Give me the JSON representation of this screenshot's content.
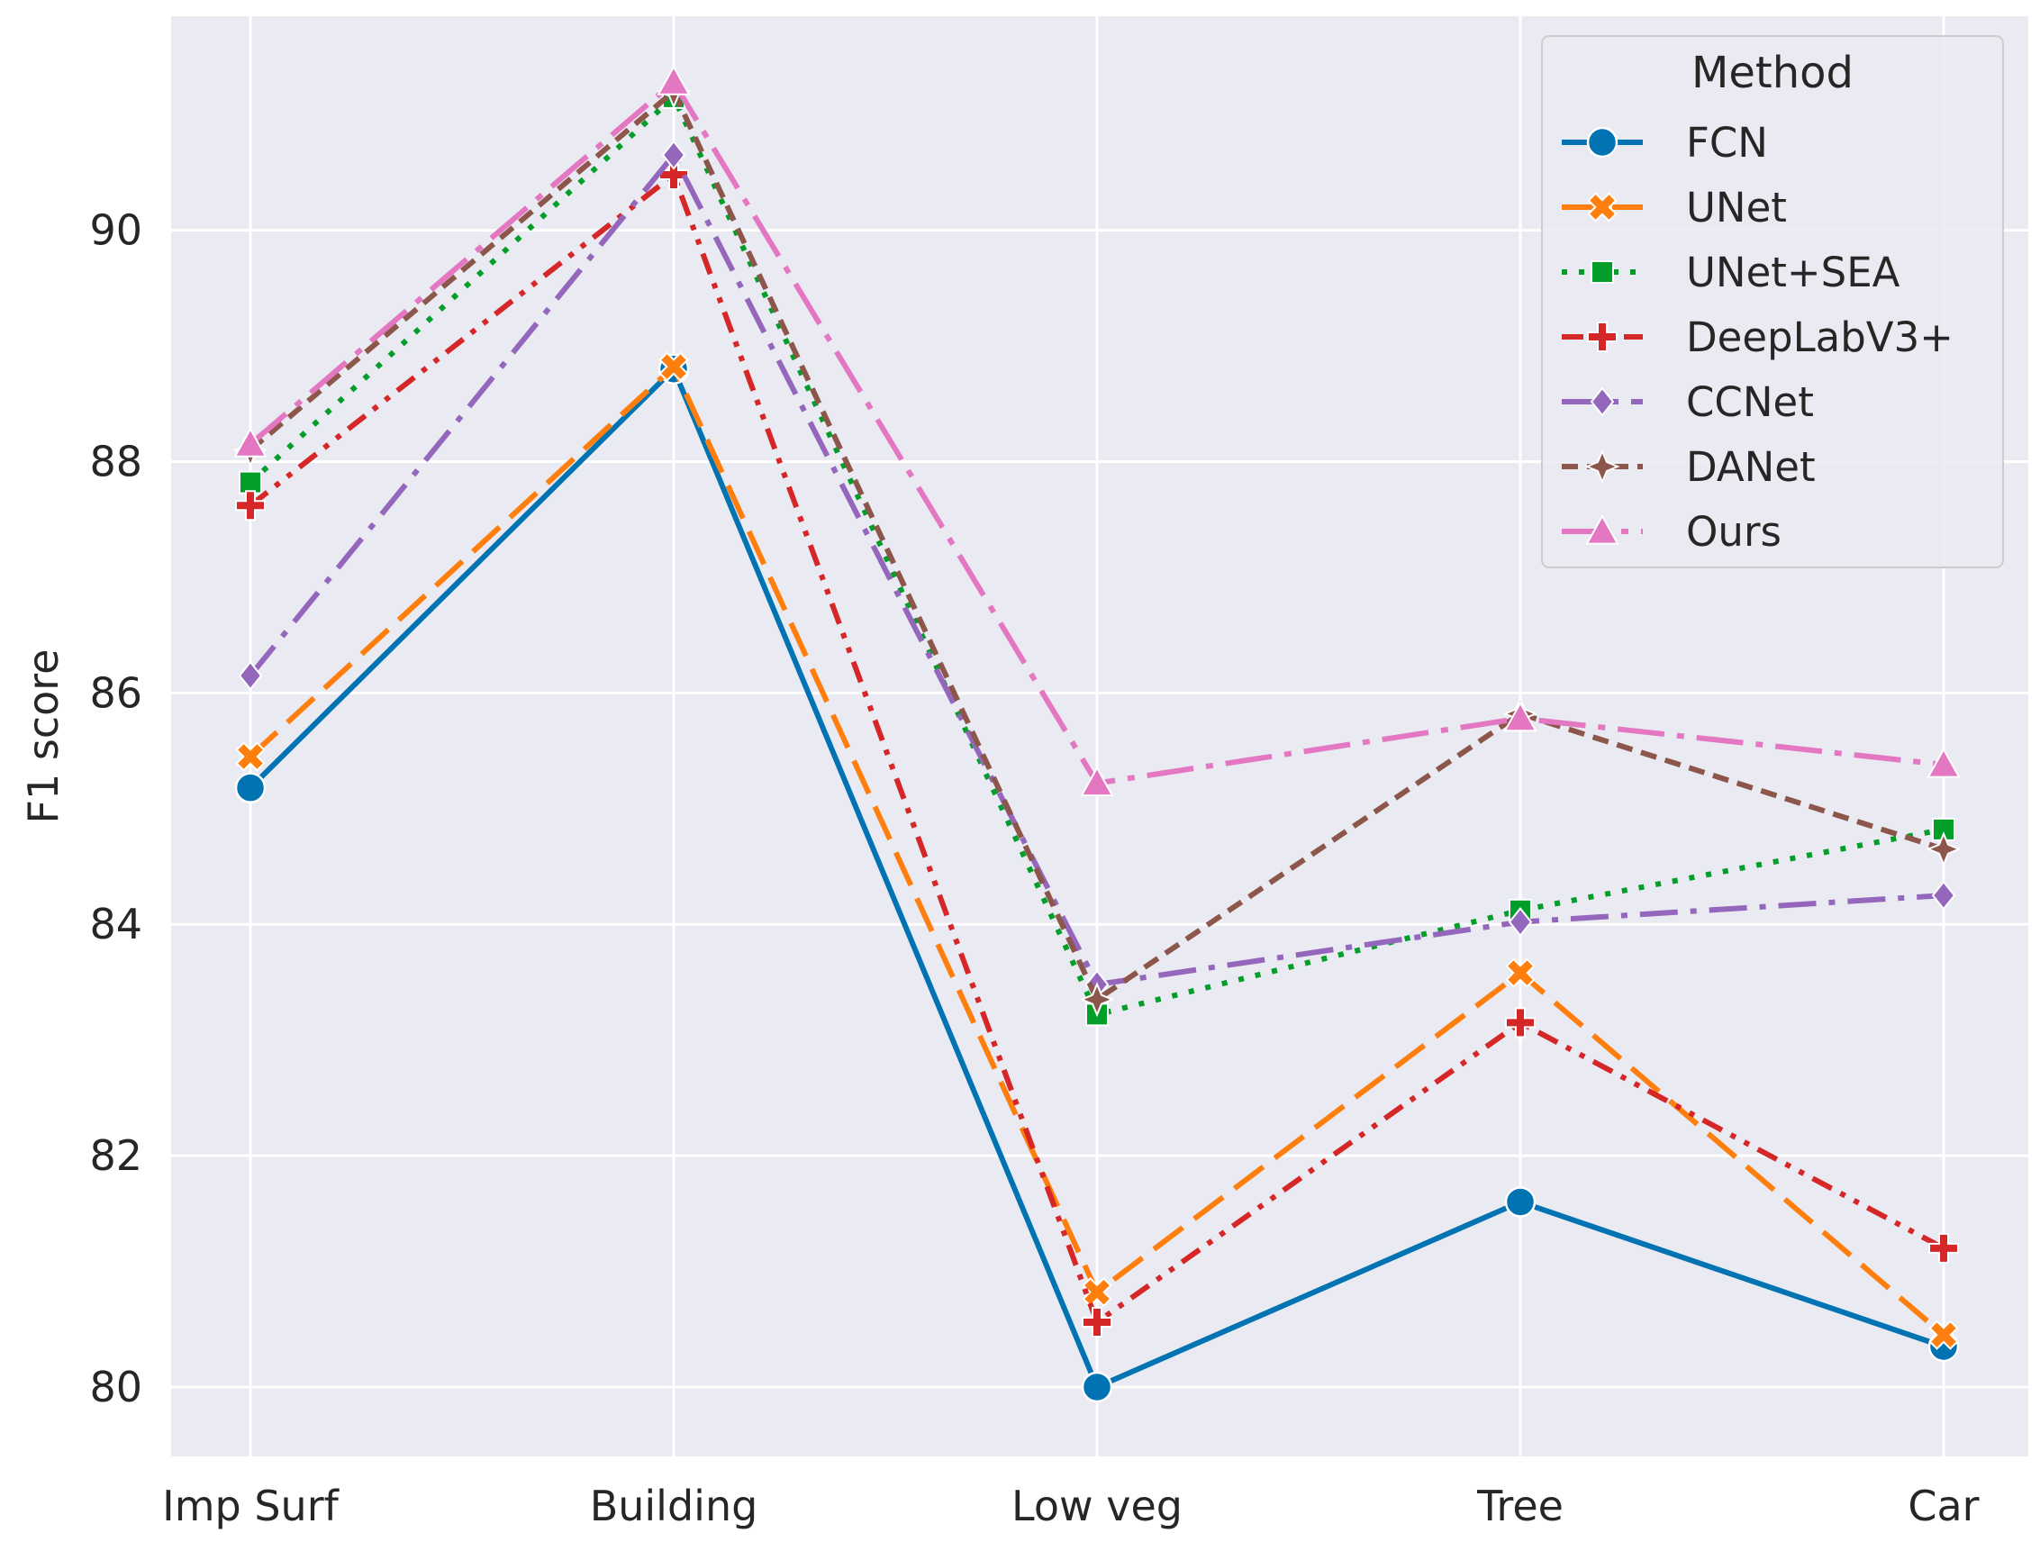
{
  "chart_data": {
    "type": "line",
    "title": "",
    "xlabel": "",
    "ylabel": "F1 score",
    "categories": [
      "Imp Surf",
      "Building",
      "Low veg",
      "Tree",
      "Car"
    ],
    "ylim": [
      79.4,
      91.85
    ],
    "yticks": [
      80,
      82,
      84,
      86,
      88,
      90
    ],
    "grid": true,
    "background": "#eaeaf2",
    "legend": {
      "title": "Method",
      "position": "top-right"
    },
    "series": [
      {
        "name": "FCN",
        "color": "#0173b2",
        "dash": "solid",
        "marker": "circle",
        "values": [
          85.18,
          88.8,
          80.0,
          81.6,
          80.35
        ]
      },
      {
        "name": "UNet",
        "color": "#ff7f0e",
        "dash": "dashed",
        "marker": "x",
        "values": [
          85.45,
          88.82,
          80.82,
          83.58,
          80.45
        ]
      },
      {
        "name": "UNet+SEA",
        "color": "#029e29",
        "dash": "dotted",
        "marker": "square",
        "values": [
          87.82,
          91.15,
          83.22,
          84.12,
          84.82
        ]
      },
      {
        "name": "DeepLabV3+",
        "color": "#d62728",
        "dash": "dashdotdot",
        "marker": "plus",
        "values": [
          87.62,
          90.48,
          80.56,
          83.15,
          81.2
        ]
      },
      {
        "name": "CCNet",
        "color": "#9467bd",
        "dash": "dashdot",
        "marker": "diamond",
        "values": [
          86.15,
          90.65,
          83.48,
          84.02,
          84.25
        ]
      },
      {
        "name": "DANet",
        "color": "#8c564b",
        "dash": "dashdense",
        "marker": "star4",
        "values": [
          88.1,
          91.2,
          83.35,
          85.82,
          84.65
        ]
      },
      {
        "name": "Ours",
        "color": "#e377c2",
        "dash": "longdashdot",
        "marker": "triangle",
        "values": [
          88.15,
          91.28,
          85.22,
          85.78,
          85.38
        ]
      }
    ]
  }
}
